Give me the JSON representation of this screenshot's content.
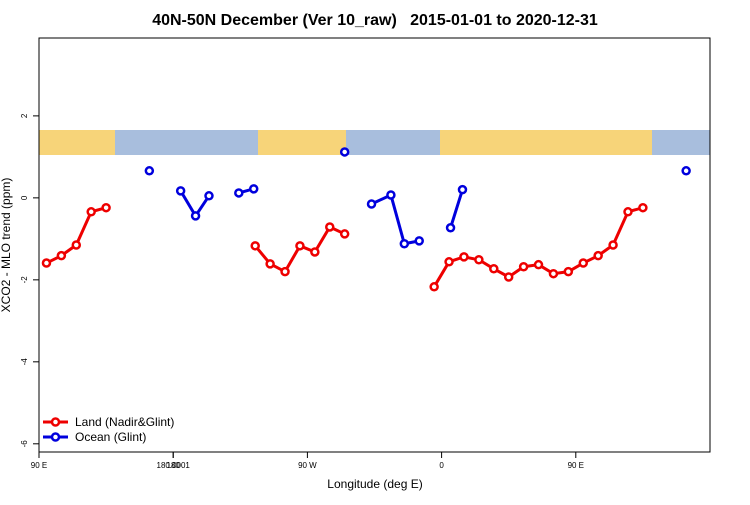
{
  "chart_data": {
    "type": "line",
    "title": "40N-50N December (Ver 10_raw)   2015-01-01 to 2020-12-31",
    "x_label": "Longitude (deg E)",
    "y_label": "XCO2 - MLO trend (ppm)",
    "xlim": [
      90,
      540
    ],
    "xticks": [
      {
        "value": 90,
        "label": "90 E"
      },
      180,
      {
        "value": 270,
        "label": "90 W"
      },
      {
        "value": 360,
        "label": "0"
      },
      {
        "value": 450,
        "label": "90 E"
      },
      180.0001
    ],
    "ylim": [
      -6.2,
      3.9
    ],
    "yticks": [
      -6,
      -4,
      -2,
      0,
      2
    ],
    "legend_position": "bottom-left",
    "series": [
      {
        "name": "Land (Nadir&Glint)",
        "color": "#ee0000",
        "x": [
          95,
          105,
          115,
          125,
          135,
          null,
          235,
          245,
          255,
          265,
          275,
          285,
          295,
          null,
          355,
          365,
          375,
          385,
          395,
          405,
          415,
          425,
          435,
          445,
          455,
          465,
          475,
          485,
          495
        ],
        "values": [
          -1.59,
          -1.41,
          -1.15,
          -0.34,
          -0.24,
          null,
          -1.17,
          -1.61,
          -1.8,
          -1.17,
          -1.32,
          -0.71,
          -0.88,
          null,
          -2.17,
          -1.56,
          -1.44,
          -1.51,
          -1.73,
          -1.93,
          -1.68,
          -1.63,
          -1.85,
          -1.8,
          -1.59,
          -1.41,
          -1.15,
          -0.34,
          -0.24
        ]
      },
      {
        "name": "Ocean (Glint)",
        "color": "#0000dd",
        "x": [
          164,
          null,
          185,
          195,
          204,
          null,
          224,
          234,
          null,
          295,
          null,
          313,
          326,
          335,
          345,
          null,
          366,
          374,
          null,
          524
        ],
        "values": [
          0.66,
          null,
          0.17,
          -0.44,
          0.05,
          null,
          0.12,
          0.22,
          null,
          1.12,
          null,
          -0.15,
          0.07,
          -1.12,
          -1.05,
          null,
          -0.73,
          0.2,
          null,
          0.66
        ]
      }
    ]
  }
}
